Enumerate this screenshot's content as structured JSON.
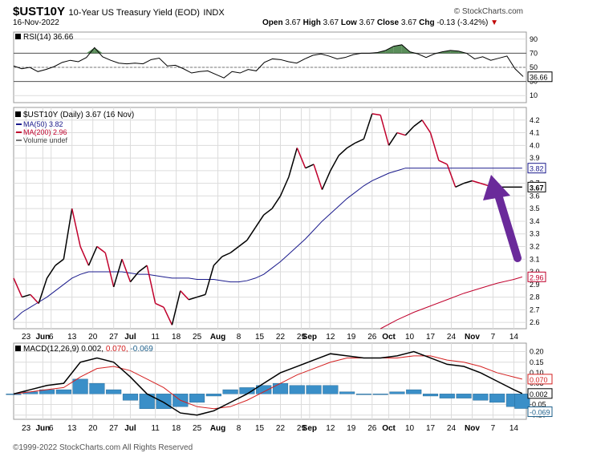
{
  "header": {
    "symbol": "$UST10Y",
    "description": "10-Year US Treasury Yield (EOD)",
    "exchange": "INDX",
    "date": "16-Nov-2022",
    "brand": "© StockCharts.com",
    "open_label": "Open",
    "open": "3.67",
    "high_label": "High",
    "high": "3.67",
    "low_label": "Low",
    "low": "3.67",
    "close_label": "Close",
    "close": "3.67",
    "chg_label": "Chg",
    "chg": "-0.13 (-3.42%)"
  },
  "footer": "©1999-2022 StockCharts.com All Rights Reserved",
  "colors": {
    "price_up": "#000000",
    "price_down": "#c0002c",
    "ma50": "#1a1a8c",
    "ma200": "#c0002c",
    "macd_line": "#000000",
    "macd_signal": "#d42020",
    "histogram": "#3a8fc8",
    "rsi_fill": "#3d7a3d",
    "arrow": "#6a2a9a",
    "grid": "#dcdcdc"
  },
  "chart_data": [
    {
      "type": "line",
      "panel": "RSI",
      "label": "RSI(14) 36.66",
      "ylim": [
        0,
        100
      ],
      "y_ticks": [
        "90",
        "70",
        "50",
        "30",
        "10"
      ],
      "y_tick_values": [
        90,
        70,
        50,
        30,
        10
      ],
      "ref_lines": [
        70,
        50,
        30
      ],
      "last_value_label": "36.66",
      "x": [
        0,
        1,
        2,
        3,
        4,
        5,
        6,
        7,
        8,
        9,
        10,
        11,
        12,
        13,
        14,
        15,
        16,
        17,
        18,
        19,
        20,
        21,
        22,
        23,
        24,
        25,
        26,
        27,
        28,
        29,
        30,
        31,
        32,
        33,
        34,
        35,
        36,
        37,
        38,
        39,
        40,
        41,
        42,
        43,
        44,
        45,
        46,
        47,
        48,
        49,
        50,
        51,
        52,
        53,
        54,
        55,
        56,
        57,
        58,
        59,
        60,
        61,
        62,
        63
      ],
      "values": [
        52,
        48,
        50,
        44,
        47,
        51,
        57,
        60,
        58,
        64,
        78,
        65,
        60,
        56,
        55,
        56,
        55,
        61,
        63,
        52,
        53,
        48,
        42,
        44,
        45,
        40,
        35,
        44,
        42,
        47,
        45,
        57,
        62,
        61,
        58,
        56,
        62,
        67,
        69,
        66,
        62,
        64,
        68,
        70,
        70,
        71,
        74,
        80,
        82,
        72,
        69,
        64,
        69,
        72,
        74,
        73,
        70,
        62,
        65,
        60,
        63,
        66,
        48,
        37
      ],
      "grid": true
    },
    {
      "type": "line",
      "panel": "Price",
      "title": "$UST10Y (Daily) 3.67 (16 Nov)",
      "legend": [
        "MA(50) 3.82",
        "MA(200) 2.96",
        "Volume undef"
      ],
      "ylim": [
        2.55,
        4.3
      ],
      "y_ticks": [
        "4.2",
        "4.1",
        "4.0",
        "3.9",
        "3.8",
        "3.7",
        "3.6",
        "3.5",
        "3.4",
        "3.3",
        "3.2",
        "3.1",
        "3.0",
        "2.9",
        "2.8",
        "2.7",
        "2.6"
      ],
      "y_tick_values": [
        4.2,
        4.1,
        4.0,
        3.9,
        3.8,
        3.7,
        3.6,
        3.5,
        3.4,
        3.3,
        3.2,
        3.1,
        3.0,
        2.9,
        2.8,
        2.7,
        2.6
      ],
      "x_labels": [
        "23",
        "Jun",
        "6",
        "13",
        "20",
        "27",
        "Jul",
        "11",
        "18",
        "25",
        "Aug",
        "8",
        "15",
        "22",
        "29",
        "Sep",
        "12",
        "19",
        "26",
        "Oct",
        "10",
        "17",
        "24",
        "Nov",
        "7",
        "14"
      ],
      "x_label_pos": [
        3,
        7,
        9,
        14,
        19,
        24,
        28,
        34,
        39,
        44,
        49,
        54,
        59,
        64,
        69,
        71,
        76,
        81,
        86,
        90,
        95,
        100,
        105,
        110,
        115,
        120
      ],
      "x": [
        0,
        2,
        4,
        6,
        8,
        10,
        12,
        14,
        16,
        18,
        20,
        22,
        24,
        26,
        28,
        30,
        32,
        34,
        36,
        38,
        40,
        42,
        44,
        46,
        48,
        50,
        52,
        54,
        56,
        58,
        60,
        62,
        64,
        66,
        68,
        70,
        72,
        74,
        76,
        78,
        80,
        82,
        84,
        86,
        88,
        90,
        92,
        94,
        96,
        98,
        100,
        102,
        104,
        106,
        108,
        110,
        112,
        114,
        116,
        118,
        120,
        122
      ],
      "values": [
        2.95,
        2.8,
        2.82,
        2.75,
        2.95,
        3.05,
        3.1,
        3.5,
        3.2,
        3.05,
        3.2,
        3.15,
        2.88,
        3.1,
        2.92,
        3.0,
        3.05,
        2.75,
        2.72,
        2.58,
        2.85,
        2.78,
        2.8,
        2.82,
        3.05,
        3.12,
        3.15,
        3.2,
        3.25,
        3.35,
        3.45,
        3.5,
        3.6,
        3.75,
        3.98,
        3.82,
        3.85,
        3.65,
        3.8,
        3.92,
        3.98,
        4.02,
        4.05,
        4.25,
        4.24,
        4.0,
        4.1,
        4.08,
        4.15,
        4.2,
        4.1,
        3.88,
        3.85,
        3.67,
        3.7,
        3.72,
        3.7,
        3.68,
        3.67,
        3.67,
        3.67,
        3.67
      ],
      "ma50": [
        2.62,
        2.68,
        2.72,
        2.76,
        2.8,
        2.85,
        2.9,
        2.95,
        2.98,
        3.0,
        3.0,
        3.0,
        3.0,
        3.0,
        2.99,
        2.98,
        2.98,
        2.97,
        2.96,
        2.95,
        2.95,
        2.95,
        2.94,
        2.94,
        2.94,
        2.93,
        2.92,
        2.92,
        2.93,
        2.95,
        2.98,
        3.03,
        3.08,
        3.14,
        3.2,
        3.26,
        3.33,
        3.4,
        3.46,
        3.52,
        3.58,
        3.63,
        3.68,
        3.72,
        3.75,
        3.78,
        3.8,
        3.82,
        3.82,
        3.82,
        3.82,
        3.82,
        3.82,
        3.82,
        3.82,
        3.82,
        3.82,
        3.82,
        3.82,
        3.82,
        3.82,
        3.82
      ],
      "ma200_x": [
        88,
        92,
        96,
        100,
        104,
        108,
        112,
        116,
        120,
        122
      ],
      "ma200": [
        2.55,
        2.62,
        2.68,
        2.73,
        2.78,
        2.83,
        2.87,
        2.91,
        2.94,
        2.96
      ],
      "price_last_label": "3.67",
      "ma50_last_label": "3.82",
      "ma200_last_label": "2.96",
      "grid": true
    },
    {
      "type": "bar",
      "panel": "MACD",
      "label": "MACD(12,26,9)",
      "values_text": [
        "0.002,",
        "0.070,",
        "-0.069"
      ],
      "ylim": [
        -0.12,
        0.24
      ],
      "y_ticks": [
        "0.20",
        "0.15",
        "0.10",
        "0.05",
        "-0.05",
        "-0.10"
      ],
      "y_tick_values": [
        0.2,
        0.15,
        0.1,
        0.05,
        -0.05,
        -0.1
      ],
      "x_labels": [
        "23",
        "Jun",
        "6",
        "13",
        "20",
        "27",
        "Jul",
        "11",
        "18",
        "25",
        "Aug",
        "8",
        "15",
        "22",
        "29",
        "Sep",
        "12",
        "19",
        "26",
        "Oct",
        "10",
        "17",
        "24",
        "Nov",
        "7",
        "14"
      ],
      "last_labels": [
        "0.070",
        "0.002",
        "-0.069"
      ],
      "x": [
        0,
        4,
        8,
        12,
        16,
        20,
        24,
        28,
        32,
        36,
        40,
        44,
        48,
        52,
        56,
        60,
        64,
        68,
        72,
        76,
        80,
        84,
        88,
        92,
        96,
        100,
        104,
        108,
        112,
        116,
        120,
        122
      ],
      "macd": [
        0.0,
        0.02,
        0.04,
        0.05,
        0.15,
        0.17,
        0.15,
        0.08,
        0.0,
        -0.04,
        -0.09,
        -0.1,
        -0.08,
        -0.04,
        0.0,
        0.05,
        0.1,
        0.13,
        0.16,
        0.19,
        0.18,
        0.17,
        0.17,
        0.18,
        0.2,
        0.17,
        0.14,
        0.13,
        0.1,
        0.06,
        0.02,
        0.002
      ],
      "signal": [
        0.0,
        0.01,
        0.02,
        0.03,
        0.08,
        0.12,
        0.13,
        0.11,
        0.07,
        0.03,
        -0.03,
        -0.06,
        -0.07,
        -0.06,
        -0.03,
        0.01,
        0.05,
        0.09,
        0.12,
        0.15,
        0.17,
        0.17,
        0.17,
        0.17,
        0.18,
        0.18,
        0.16,
        0.15,
        0.13,
        0.1,
        0.08,
        0.07
      ],
      "histogram": [
        0.0,
        0.01,
        0.02,
        0.02,
        0.07,
        0.05,
        0.02,
        -0.03,
        -0.07,
        -0.07,
        -0.06,
        -0.04,
        -0.01,
        0.02,
        0.03,
        0.04,
        0.05,
        0.04,
        0.04,
        0.04,
        0.01,
        0.0,
        0.0,
        0.01,
        0.02,
        -0.01,
        -0.02,
        -0.02,
        -0.03,
        -0.04,
        -0.06,
        -0.069
      ],
      "grid": true
    }
  ]
}
